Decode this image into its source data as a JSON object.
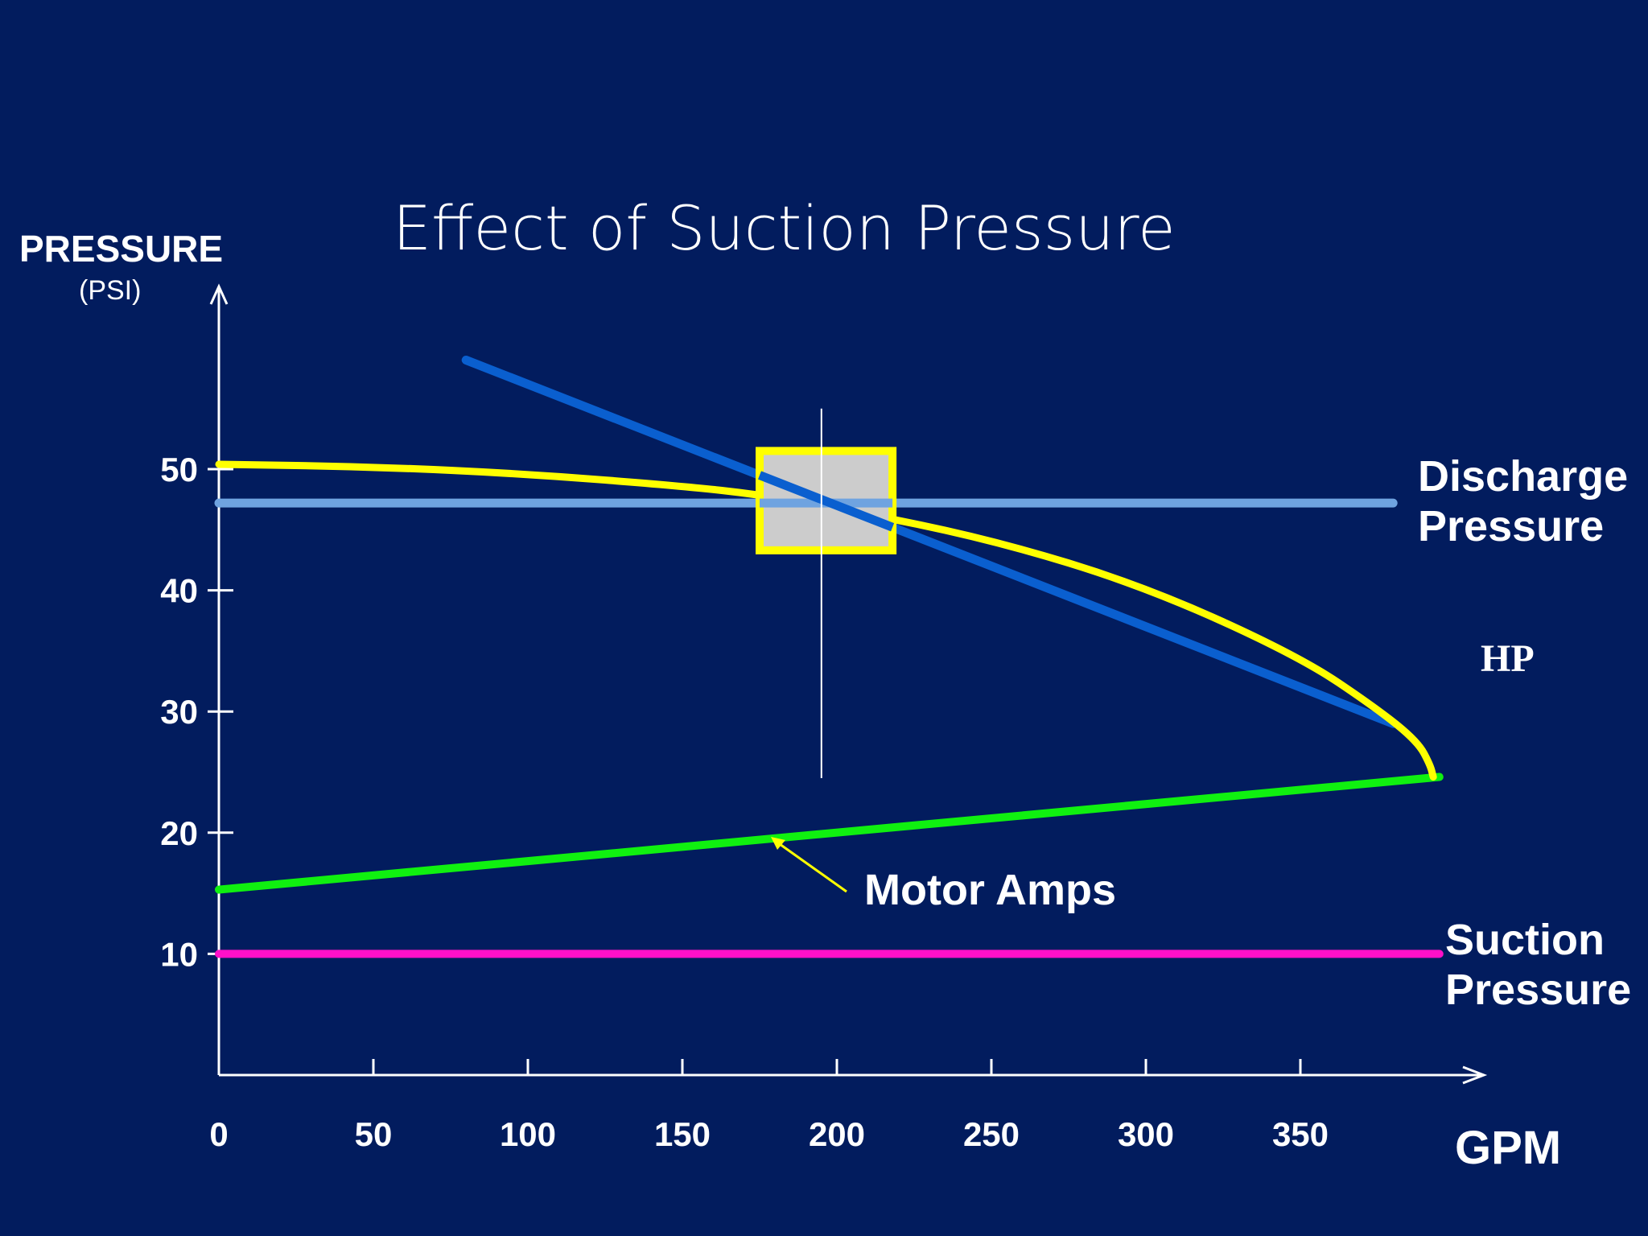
{
  "slide": {
    "title": "Effect of Suction Pressure",
    "background_color": "#021c5e"
  },
  "chart_data": {
    "type": "line",
    "title": "Effect of Suction Pressure",
    "ylabel": "PRESSURE",
    "ylabel_unit": "(PSI)",
    "xlabel": "GPM",
    "xlim": [
      0,
      400
    ],
    "ylim": [
      0,
      60
    ],
    "x_ticks": [
      0,
      50,
      100,
      150,
      200,
      250,
      300,
      350
    ],
    "y_ticks": [
      10,
      20,
      30,
      40,
      50
    ],
    "grid": false,
    "series": [
      {
        "name": "Discharge Pressure",
        "color": "#6fa3e0",
        "x": [
          0,
          380
        ],
        "y": [
          47.2,
          47.2
        ]
      },
      {
        "name": "Suction Pressure",
        "color": "#ff10c8",
        "x": [
          0,
          395
        ],
        "y": [
          10,
          10
        ]
      },
      {
        "name": "Motor Amps",
        "color": "#10f010",
        "x": [
          0,
          395
        ],
        "y": [
          15.3,
          24.6
        ]
      },
      {
        "name": "HP",
        "color": "#0a5fcf",
        "x": [
          80,
          380
        ],
        "y": [
          59,
          29
        ]
      },
      {
        "color": "#ffff00",
        "x": [
          0,
          50,
          100,
          150,
          175,
          200,
          250,
          300,
          350,
          375,
          388,
          392,
          393
        ],
        "y": [
          50.4,
          50.2,
          49.6,
          48.6,
          47.9,
          46.8,
          44.2,
          40.3,
          34.5,
          30.2,
          27.5,
          25.6,
          24.6
        ]
      }
    ],
    "annotations": [
      {
        "text": "Motor Amps",
        "points_to": "Motor Amps"
      }
    ],
    "highlight": {
      "type": "box",
      "x_range": [
        175,
        218
      ],
      "y_range": [
        43.3,
        51.5
      ],
      "fill": "#cccccc",
      "border": "#ffff00"
    },
    "reference_line": {
      "x": 195,
      "y_range": [
        24.5,
        55
      ]
    }
  },
  "labels": {
    "discharge": [
      "Discharge",
      "Pressure"
    ],
    "suction": [
      "Suction",
      "Pressure"
    ],
    "motor_amps": "Motor Amps",
    "hp": "HP"
  }
}
